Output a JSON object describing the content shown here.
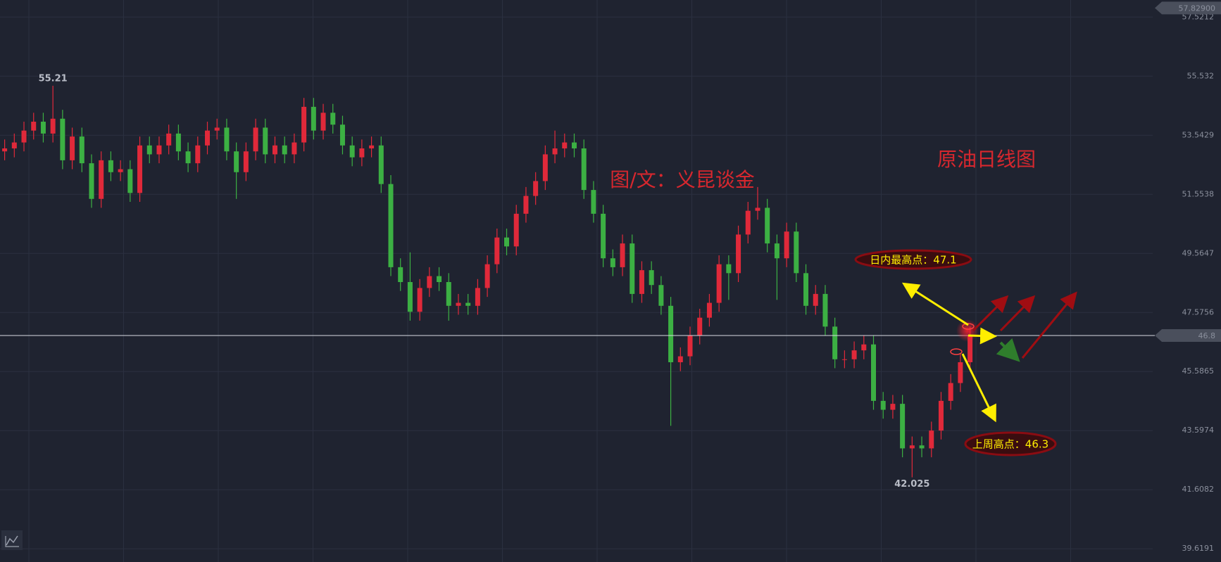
{
  "chart_data": {
    "type": "candlestick",
    "series": [
      {
        "up_color": "#e0293a",
        "down_color": "#3cb043",
        "open": [
          53.0,
          53.1,
          53.3,
          53.7,
          54.0,
          53.6,
          54.1,
          52.7,
          53.5,
          52.6,
          51.4,
          52.7,
          52.3,
          52.4,
          51.6,
          53.2,
          52.9,
          53.2,
          53.6,
          53.0,
          52.6,
          53.2,
          53.7,
          53.8,
          53.0,
          52.3,
          53.0,
          53.8,
          52.9,
          53.2,
          52.9,
          53.3,
          54.5,
          53.7,
          54.3,
          53.9,
          53.2,
          52.8,
          53.1,
          53.2,
          51.9,
          49.1,
          48.6,
          47.6,
          48.4,
          48.8,
          48.6,
          47.8,
          47.9,
          47.8,
          48.4,
          49.2,
          50.1,
          49.8,
          50.9,
          51.5,
          52.0,
          52.9,
          53.1,
          53.3,
          53.1,
          51.7,
          50.9,
          49.4,
          49.1,
          49.9,
          48.2,
          49.0,
          48.5,
          47.8,
          45.9,
          46.1,
          46.8,
          47.4,
          47.9,
          49.2,
          48.9,
          50.2,
          51.0,
          51.1,
          49.9,
          49.4,
          50.3,
          48.9,
          47.8,
          48.2,
          47.1,
          46.0,
          46.0,
          46.3,
          46.5,
          44.6,
          44.3,
          44.5,
          43.0,
          43.1,
          43.0,
          43.6,
          44.6,
          45.2,
          45.9
        ],
        "high": [
          53.4,
          53.6,
          54.0,
          54.3,
          54.3,
          55.21,
          54.4,
          53.8,
          53.8,
          52.9,
          53.0,
          53.0,
          52.7,
          52.7,
          53.5,
          53.5,
          53.5,
          53.9,
          53.9,
          53.3,
          53.5,
          54.0,
          54.1,
          54.1,
          53.3,
          53.3,
          54.1,
          54.1,
          53.5,
          53.5,
          53.6,
          54.8,
          54.8,
          54.6,
          54.6,
          54.2,
          53.5,
          53.4,
          53.5,
          53.5,
          52.2,
          49.4,
          49.6,
          48.7,
          49.1,
          49.1,
          48.9,
          48.2,
          48.2,
          48.7,
          49.5,
          50.4,
          50.4,
          51.2,
          51.8,
          52.3,
          53.2,
          53.7,
          53.6,
          53.6,
          53.4,
          52.0,
          51.2,
          49.7,
          50.2,
          50.2,
          49.3,
          49.3,
          48.8,
          48.1,
          46.4,
          47.1,
          47.7,
          48.2,
          49.5,
          49.5,
          50.5,
          51.3,
          51.8,
          51.4,
          50.2,
          50.6,
          50.6,
          49.2,
          48.5,
          48.5,
          47.4,
          46.3,
          46.6,
          46.8,
          46.8,
          44.9,
          44.8,
          44.8,
          43.4,
          43.4,
          43.9,
          44.9,
          45.5,
          46.2,
          47.1
        ],
        "low": [
          52.7,
          52.8,
          53.0,
          53.4,
          53.3,
          53.3,
          52.4,
          52.4,
          52.3,
          51.1,
          51.1,
          52.0,
          52.0,
          51.3,
          51.3,
          52.6,
          52.6,
          52.9,
          52.7,
          52.3,
          52.3,
          52.9,
          53.4,
          52.7,
          51.4,
          52.0,
          52.7,
          52.6,
          52.6,
          52.6,
          52.6,
          53.0,
          53.4,
          53.4,
          53.6,
          52.9,
          52.5,
          52.5,
          52.8,
          51.6,
          48.8,
          48.3,
          47.3,
          47.3,
          48.1,
          48.3,
          47.3,
          47.5,
          47.5,
          47.5,
          48.1,
          48.9,
          49.5,
          49.5,
          50.6,
          51.2,
          51.7,
          52.6,
          52.8,
          52.8,
          51.4,
          50.6,
          49.1,
          48.8,
          48.8,
          47.9,
          47.9,
          48.2,
          47.5,
          43.76,
          45.6,
          45.8,
          46.5,
          47.1,
          47.6,
          48.0,
          48.6,
          49.9,
          50.7,
          49.6,
          48.0,
          49.1,
          48.6,
          47.5,
          47.5,
          46.8,
          45.7,
          45.7,
          45.7,
          46.0,
          44.3,
          44.0,
          44.0,
          42.7,
          42.025,
          42.7,
          42.7,
          43.3,
          44.3,
          44.9,
          45.6
        ],
        "close": [
          53.1,
          53.3,
          53.7,
          54.0,
          53.6,
          54.1,
          52.7,
          53.5,
          52.6,
          51.4,
          52.7,
          52.3,
          52.4,
          51.6,
          53.2,
          52.9,
          53.2,
          53.6,
          53.0,
          52.6,
          53.2,
          53.7,
          53.8,
          53.0,
          52.3,
          53.0,
          53.8,
          52.9,
          53.2,
          52.9,
          53.3,
          54.5,
          53.7,
          54.3,
          53.9,
          53.2,
          52.8,
          53.1,
          53.2,
          51.9,
          49.1,
          48.6,
          47.6,
          48.4,
          48.8,
          48.6,
          47.8,
          47.9,
          47.8,
          48.4,
          49.2,
          50.1,
          49.8,
          50.9,
          51.5,
          52.0,
          52.9,
          53.1,
          53.3,
          53.1,
          51.7,
          50.9,
          49.4,
          49.1,
          49.9,
          48.2,
          49.0,
          48.5,
          47.8,
          45.9,
          46.1,
          46.8,
          47.4,
          47.9,
          49.2,
          48.9,
          50.2,
          51.0,
          51.1,
          49.9,
          49.4,
          50.3,
          48.9,
          47.8,
          48.2,
          47.1,
          46.0,
          46.0,
          46.3,
          46.5,
          44.6,
          44.3,
          44.5,
          43.0,
          43.1,
          43.0,
          43.6,
          44.6,
          45.2,
          45.9,
          46.8
        ]
      }
    ],
    "ylim": [
      39.174,
      58.097
    ],
    "yticks": [
      39.6191,
      41.6082,
      43.5974,
      45.5865,
      47.5756,
      49.5647,
      51.5538,
      53.5429,
      55.532,
      57.5212
    ],
    "grid": true,
    "last_price": 46.8,
    "top_price_tag": {
      "value": 57.829,
      "label": "57.82900"
    },
    "annotations": {
      "author": "图/文：义昆谈金",
      "chart_name": "原油日线图",
      "intraday_high": "日内最高点：47.1",
      "last_week_high": "上周高点：46.3"
    }
  }
}
